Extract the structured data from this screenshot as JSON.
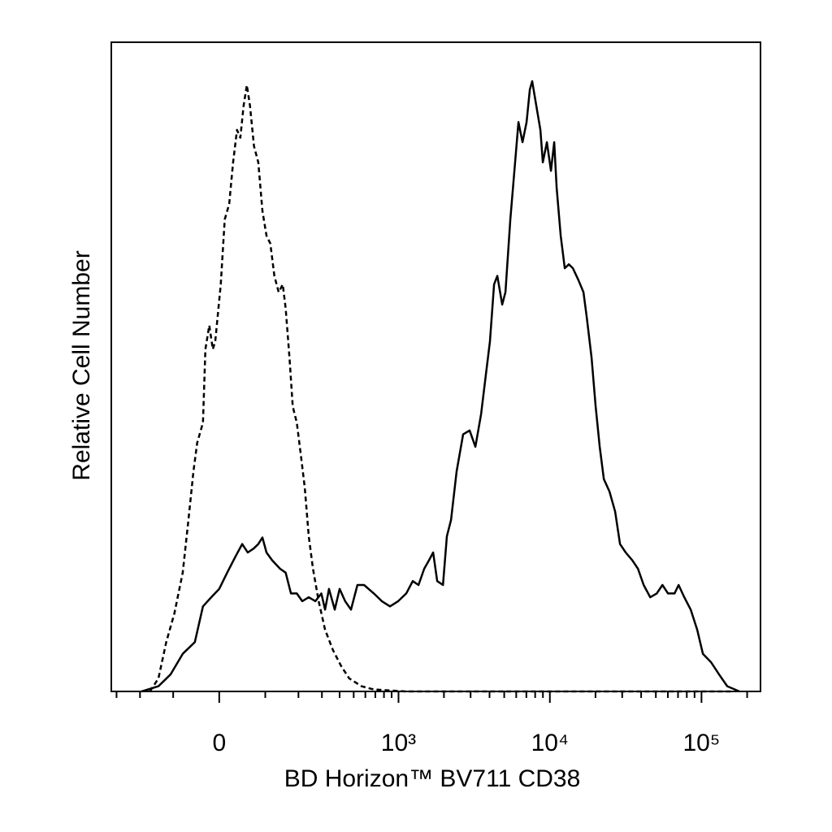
{
  "chart_data": {
    "type": "line",
    "xlabel": "BD Horizon™ BV711 CD38",
    "ylabel": "Relative Cell Number",
    "xscale": "asinh",
    "xlim": [
      -327,
      245000
    ],
    "ylim": [
      0,
      100
    ],
    "xticks": [
      0,
      {
        "value": 1000,
        "label": "10³"
      },
      {
        "value": 10000,
        "label": "10⁴"
      },
      {
        "value": 100000,
        "label": "10⁵"
      }
    ],
    "xminorticks": [
      -300,
      -200,
      -100,
      100,
      200,
      300,
      400,
      500,
      600,
      700,
      800,
      900,
      2000,
      3000,
      4000,
      5000,
      6000,
      7000,
      8000,
      9000,
      20000,
      30000,
      40000,
      50000,
      60000,
      70000,
      80000,
      90000,
      200000
    ],
    "series": [
      {
        "color": "#000000",
        "style": "dashed",
        "x": [
          -166,
          -140,
          -118,
          -97,
          -77,
          -64,
          -53,
          -45,
          -33,
          -28,
          -20,
          -13,
          -8,
          3,
          11,
          20,
          28,
          36,
          43,
          50,
          57,
          64,
          73,
          83,
          93,
          103,
          113,
          124,
          136,
          148,
          157,
          169,
          180,
          194,
          209,
          224,
          240,
          258,
          284,
          316,
          359,
          410,
          466,
          565,
          684,
          1126,
          158000
        ],
        "values": [
          0,
          2.0,
          7.6,
          12.0,
          18.3,
          26.4,
          33.9,
          38.3,
          41.4,
          52.7,
          56.4,
          52.7,
          53.9,
          62.7,
          72.7,
          75.1,
          81.5,
          86.5,
          85.3,
          90.2,
          93.4,
          90.2,
          84.0,
          81.5,
          74.0,
          70.2,
          69.0,
          64.0,
          61.5,
          62.7,
          59.0,
          51.4,
          43.9,
          41.4,
          36.4,
          31.4,
          23.9,
          18.9,
          13.9,
          9.5,
          6.4,
          3.9,
          2.0,
          0.8,
          0.3,
          0,
          0
        ]
      },
      {
        "color": "#000000",
        "style": "solid",
        "x": [
          -194,
          -140,
          -107,
          -77,
          -50,
          -33,
          -16,
          0,
          16,
          33,
          47,
          59,
          72,
          83,
          93,
          103,
          118,
          140,
          157,
          174,
          194,
          214,
          240,
          269,
          297,
          316,
          337,
          370,
          400,
          437,
          479,
          530,
          588,
          684,
          774,
          878,
          995,
          1126,
          1243,
          1357,
          1480,
          1593,
          1697,
          1805,
          1970,
          2092,
          2226,
          2425,
          2678,
          2957,
          3227,
          3516,
          3786,
          4026,
          4285,
          4503,
          4847,
          5095,
          5487,
          5838,
          6208,
          6600,
          7020,
          7375,
          7650,
          8140,
          8660,
          8985,
          9560,
          10170,
          10680,
          11080,
          11790,
          12540,
          13340,
          14190,
          15470,
          16660,
          17500,
          18850,
          20050,
          21330,
          22690,
          24720,
          26950,
          29030,
          31650,
          34950,
          38120,
          41550,
          45900,
          50680,
          55230,
          60200,
          66450,
          70670,
          77000,
          84900,
          93700,
          102200,
          115600,
          130800,
          147900,
          178000
        ],
        "values": [
          0,
          0.8,
          2.6,
          5.8,
          7.6,
          13.1,
          14.5,
          15.8,
          18.3,
          20.8,
          22.7,
          21.4,
          22.0,
          22.7,
          23.7,
          21.4,
          20.2,
          18.9,
          18.3,
          15.1,
          15.1,
          13.9,
          14.5,
          13.9,
          15.1,
          12.6,
          15.8,
          12.6,
          15.8,
          13.9,
          12.6,
          16.4,
          16.4,
          15.1,
          13.9,
          13.1,
          13.9,
          15.1,
          17.0,
          16.4,
          18.9,
          20.2,
          21.4,
          17.0,
          16.4,
          23.9,
          26.4,
          33.9,
          39.6,
          40.2,
          37.7,
          42.7,
          48.9,
          53.9,
          62.7,
          64.0,
          59.6,
          61.5,
          72.7,
          80.2,
          87.7,
          84.6,
          87.7,
          92.7,
          94.0,
          90.2,
          86.5,
          81.5,
          84.6,
          80.2,
          84.6,
          77.6,
          70.2,
          65.2,
          65.8,
          65.2,
          63.3,
          61.5,
          57.7,
          51.4,
          43.9,
          37.7,
          32.7,
          30.8,
          27.7,
          22.7,
          21.4,
          20.2,
          18.9,
          16.4,
          14.5,
          15.1,
          16.4,
          15.1,
          15.1,
          16.4,
          14.5,
          12.6,
          9.5,
          5.8,
          4.5,
          2.6,
          0.8,
          0
        ]
      }
    ]
  }
}
